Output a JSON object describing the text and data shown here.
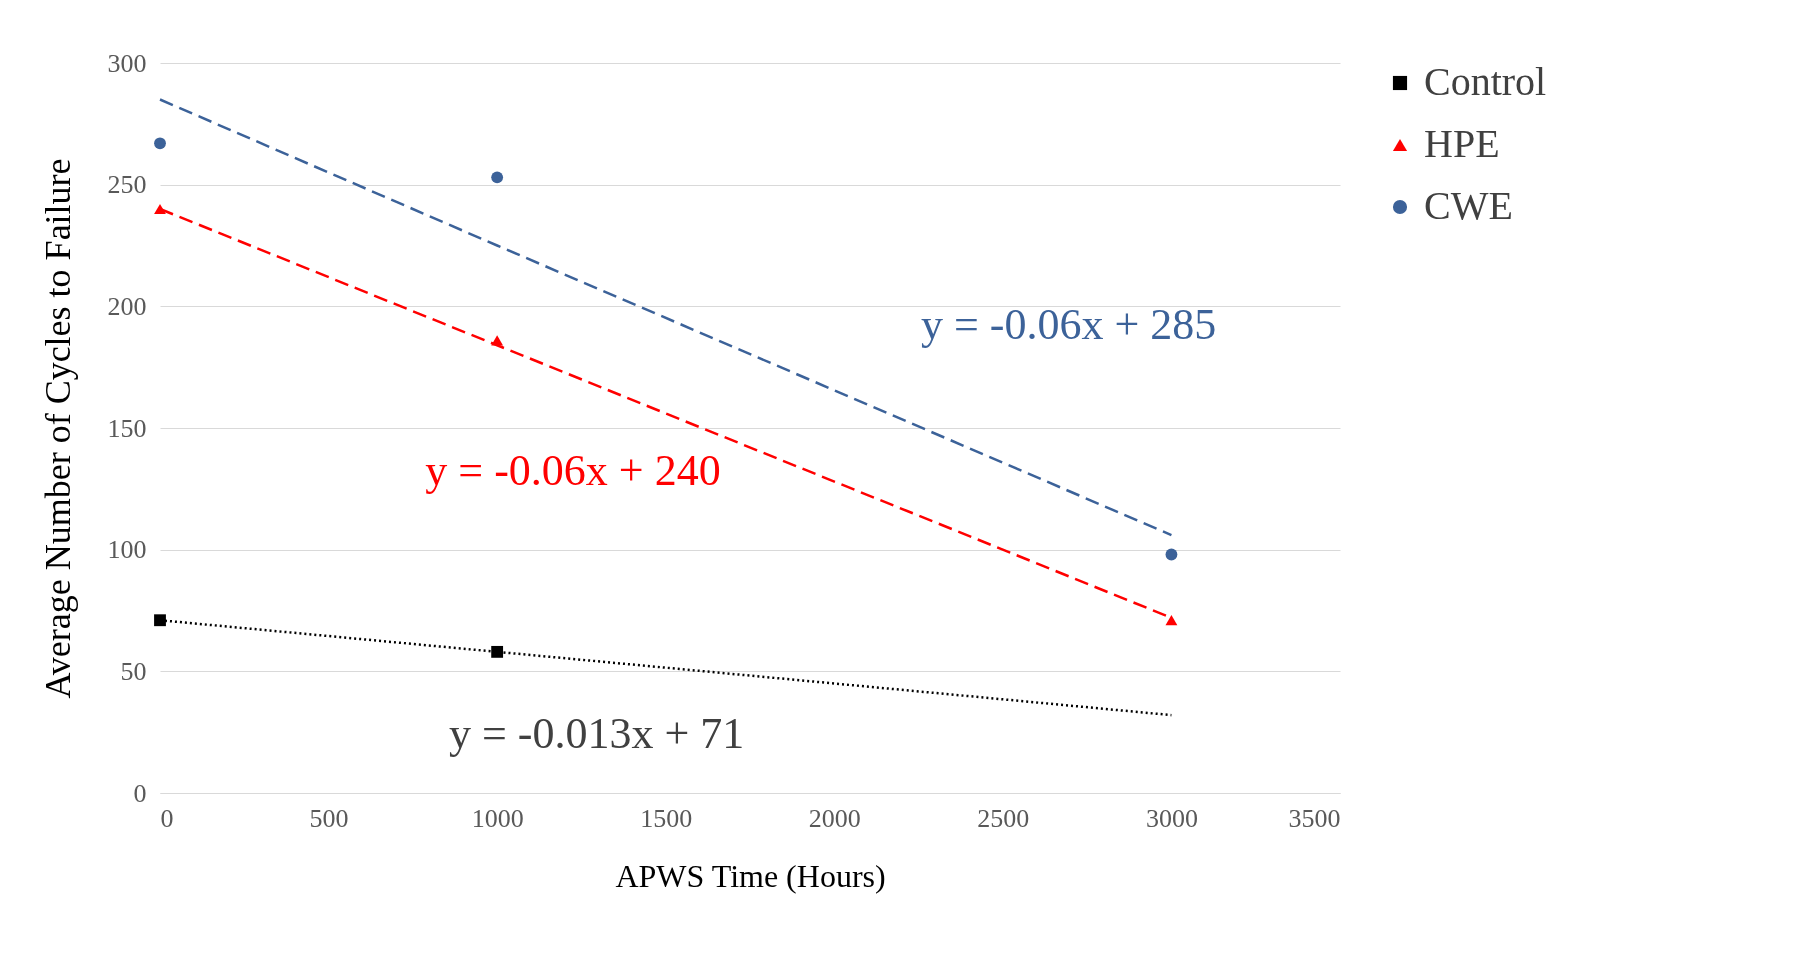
{
  "chart_data": {
    "type": "scatter",
    "xlabel": "APWS Time (Hours)",
    "ylabel": "Average Number of Cycles to Failure",
    "x": [
      0,
      1000,
      3000
    ],
    "series": [
      {
        "name": "Control",
        "color": "#000000",
        "marker": "square",
        "values": [
          71,
          58,
          null
        ]
      },
      {
        "name": "HPE",
        "color": "#ff0000",
        "marker": "triangle",
        "values": [
          240,
          186,
          71
        ]
      },
      {
        "name": "CWE",
        "color": "#3c6299",
        "marker": "circle",
        "values": [
          267,
          253,
          98
        ]
      },
      {
        "type": "line",
        "color": "#3c6299",
        "line_style": "dashed",
        "marker": "none",
        "values": [
          285,
          225,
          106
        ]
      },
      {
        "type": "line",
        "color": "#ff0000",
        "line_style": "dashed",
        "marker": "none",
        "values": [
          240,
          184,
          72
        ]
      },
      {
        "type": "line",
        "color": "#000000",
        "line_style": "dotted",
        "marker": "none",
        "values": [
          71,
          58,
          32
        ]
      }
    ],
    "annotations": [
      "y = -0.06x + 285",
      "y = -0.06x + 240",
      "y = -0.013x + 71"
    ],
    "xlim": [
      0,
      3500
    ],
    "xticks": [
      0,
      500,
      1000,
      1500,
      2000,
      2500,
      3000,
      3500
    ],
    "ylim": [
      0,
      300
    ],
    "yticks": [
      0,
      50,
      100,
      150,
      200,
      250,
      300
    ],
    "grid": "y",
    "legend": "right"
  }
}
